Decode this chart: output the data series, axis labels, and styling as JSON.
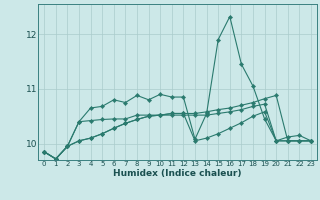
{
  "xlabel": "Humidex (Indice chaleur)",
  "background_color": "#cce8e8",
  "grid_color": "#aacccc",
  "line_color": "#2a7a6e",
  "xlim": [
    -0.5,
    23.5
  ],
  "ylim": [
    9.7,
    12.55
  ],
  "yticks": [
    10,
    11,
    12
  ],
  "xtick_labels": [
    "0",
    "1",
    "2",
    "3",
    "4",
    "5",
    "6",
    "7",
    "8",
    "9",
    "10",
    "11",
    "12",
    "13",
    "14",
    "15",
    "16",
    "17",
    "18",
    "19",
    "20",
    "21",
    "22",
    "23"
  ],
  "s1": [
    9.85,
    9.72,
    9.95,
    10.4,
    10.65,
    10.68,
    10.8,
    10.75,
    10.88,
    10.8,
    10.9,
    10.85,
    10.85,
    10.08,
    10.55,
    11.9,
    12.32,
    11.45,
    11.05,
    10.45,
    10.05,
    10.12,
    10.15,
    10.05
  ],
  "s2": [
    9.85,
    9.72,
    9.95,
    10.4,
    10.42,
    10.44,
    10.45,
    10.45,
    10.52,
    10.52,
    10.52,
    10.52,
    10.52,
    10.52,
    10.52,
    10.55,
    10.58,
    10.62,
    10.68,
    10.72,
    10.05,
    10.05,
    10.05,
    10.05
  ],
  "s3": [
    9.85,
    9.72,
    9.95,
    10.05,
    10.1,
    10.18,
    10.28,
    10.37,
    10.44,
    10.5,
    10.52,
    10.55,
    10.55,
    10.55,
    10.58,
    10.62,
    10.65,
    10.7,
    10.75,
    10.82,
    10.88,
    10.05,
    10.05,
    10.05
  ],
  "s4": [
    9.85,
    9.72,
    9.95,
    10.05,
    10.1,
    10.18,
    10.28,
    10.37,
    10.44,
    10.5,
    10.52,
    10.55,
    10.55,
    10.05,
    10.1,
    10.18,
    10.28,
    10.38,
    10.5,
    10.58,
    10.05,
    10.05,
    10.05,
    10.05
  ]
}
